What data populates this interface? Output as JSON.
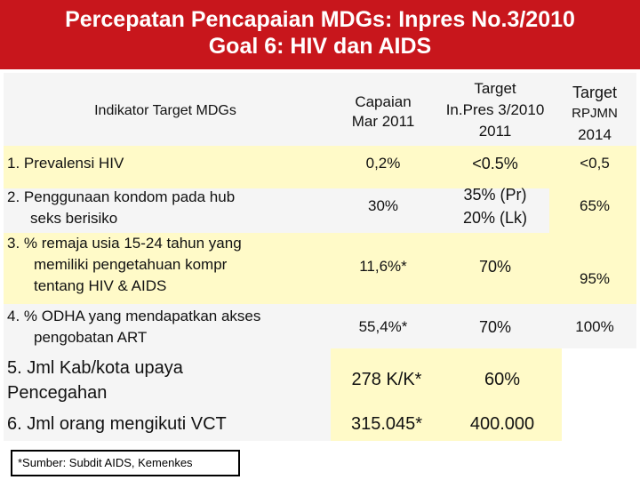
{
  "title": {
    "line1": "Percepatan Pencapaian MDGs: Inpres No.3/2010",
    "line2": "Goal 6: HIV dan AIDS"
  },
  "table": {
    "headers": {
      "indicator": "Indikator Target MDGs",
      "capaian_1": "Capaian",
      "capaian_2": "Mar 2011",
      "inpres_1": "Target",
      "inpres_2": "In.Pres 3/2010",
      "inpres_3": "2011",
      "rpjmn_1": "Target",
      "rpjmn_2": "RPJMN",
      "rpjmn_3": "2014"
    },
    "rows": [
      {
        "indicator_1": "1. Prevalensi HIV",
        "capaian": "0,2%",
        "inpres": "<0.5%",
        "rpjmn": "<0,5"
      },
      {
        "indicator_1": "2. Penggunaan kondom pada hub",
        "indicator_2": "seks berisiko",
        "capaian": "30%",
        "inpres_1": "35% (Pr)",
        "inpres_2": "20% (Lk)",
        "rpjmn": "65%"
      },
      {
        "indicator_1": "3. % remaja usia 15-24 tahun  yang",
        "indicator_2": "memiliki pengetahuan kompr",
        "indicator_3": "tentang HIV & AIDS",
        "capaian": "11,6%*",
        "inpres": "70%",
        "rpjmn": "95%"
      },
      {
        "indicator_1": "4. % ODHA yang mendapatkan akses",
        "indicator_2": "pengobatan ART",
        "capaian": "55,4%*",
        "inpres": "70%",
        "rpjmn": "100%"
      },
      {
        "indicator_1": "5. Jml Kab/kota upaya",
        "indicator_2": "Pencegahan",
        "capaian": "278 K/K*",
        "inpres": "60%"
      },
      {
        "indicator_1": "6. Jml orang mengikuti VCT",
        "capaian": "315.045*",
        "inpres": "400.000"
      }
    ]
  },
  "source": "*Sumber: Subdit  AIDS, Kemenkes",
  "colors": {
    "title_bg": "#c8161c",
    "yellow_cell": "#fffac8",
    "table_bg": "#f5f5f5"
  }
}
